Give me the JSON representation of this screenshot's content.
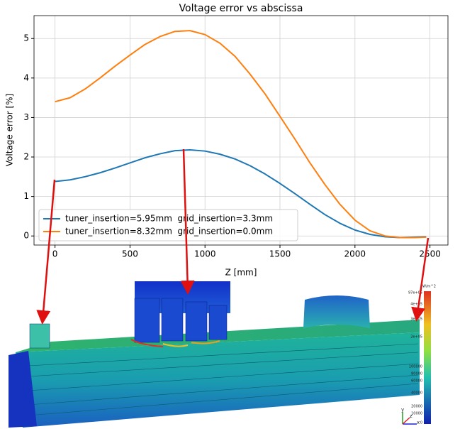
{
  "chart_data": {
    "type": "line",
    "title": "Voltage error vs abscissa",
    "xlabel": "Z [mm]",
    "ylabel": "Voltage error [%]",
    "x": [
      0,
      100,
      200,
      300,
      400,
      500,
      600,
      700,
      800,
      900,
      1000,
      1100,
      1200,
      1300,
      1400,
      1500,
      1600,
      1700,
      1800,
      1900,
      2000,
      2100,
      2200,
      2300,
      2400,
      2475
    ],
    "series": [
      {
        "name": "tuner_insertion=5.95mm  grid_insertion=3.3mm",
        "color": "#1f77b4",
        "values": [
          1.38,
          1.42,
          1.5,
          1.6,
          1.72,
          1.85,
          1.98,
          2.08,
          2.16,
          2.18,
          2.15,
          2.07,
          1.95,
          1.78,
          1.57,
          1.33,
          1.07,
          0.8,
          0.54,
          0.32,
          0.15,
          0.04,
          -0.02,
          -0.04,
          -0.03,
          -0.02
        ]
      },
      {
        "name": "tuner_insertion=8.32mm  grid_insertion=0.0mm",
        "color": "#ff7f0e",
        "values": [
          3.4,
          3.5,
          3.72,
          4.0,
          4.3,
          4.58,
          4.85,
          5.05,
          5.18,
          5.2,
          5.1,
          4.88,
          4.55,
          4.1,
          3.6,
          3.03,
          2.45,
          1.85,
          1.3,
          0.8,
          0.4,
          0.13,
          0.0,
          -0.04,
          -0.04,
          -0.03
        ]
      }
    ],
    "xlim": [
      -140,
      2620
    ],
    "xticks": [
      0,
      500,
      1000,
      1500,
      2000,
      2500
    ],
    "ylim": [
      -0.23,
      5.58
    ],
    "yticks": [
      0,
      1,
      2,
      3,
      4,
      5
    ],
    "grid": true,
    "legend": "lower-left"
  },
  "render": {
    "colorbar_unit": "W/m^2",
    "colorbar_labels": [
      "97e+05",
      "4e+05",
      "3e+05",
      "2e+05",
      "100000",
      "80000",
      "60000",
      "40000",
      "20000",
      "10000",
      "0"
    ],
    "axes": [
      "y",
      "x",
      "z"
    ]
  }
}
